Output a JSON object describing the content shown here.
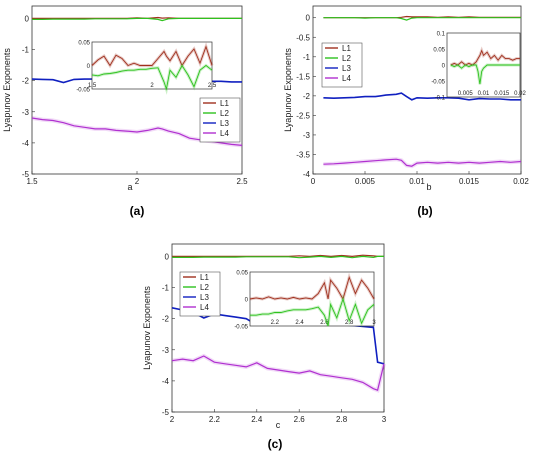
{
  "chart_data": [
    {
      "type": "line",
      "panel_caption": "(a)",
      "xlabel": "a",
      "ylabel": "Lyapunov Exponents",
      "xlim": [
        1.5,
        2.5
      ],
      "ylim": [
        -5,
        0.4
      ],
      "xticks": [
        "1.5",
        "2",
        "2.5"
      ],
      "yticks": [
        "0",
        "-1",
        "-2",
        "-3",
        "-4",
        "-5"
      ],
      "legend_position": "right",
      "x": [
        1.5,
        1.55,
        1.6,
        1.65,
        1.7,
        1.75,
        1.8,
        1.85,
        1.9,
        1.95,
        2.0,
        2.05,
        2.1,
        2.12,
        2.15,
        2.2,
        2.25,
        2.3,
        2.35,
        2.4,
        2.45,
        2.5
      ],
      "series": [
        {
          "name": "L1",
          "color": "#a0301e",
          "values": [
            0.0,
            0.0,
            0.0,
            0.0,
            0.0,
            0.0,
            0.0,
            0.0,
            0.0,
            0.0,
            0.02,
            0.0,
            0.03,
            0.01,
            0.02,
            0.0,
            0.0,
            0.0,
            0.0,
            0.0,
            0.0,
            0.0
          ]
        },
        {
          "name": "L2",
          "color": "#2ec21e",
          "values": [
            -0.03,
            -0.03,
            -0.02,
            -0.02,
            -0.02,
            -0.02,
            -0.01,
            -0.01,
            -0.01,
            -0.01,
            0.0,
            0.0,
            -0.03,
            -0.07,
            -0.01,
            0.0,
            0.0,
            0.0,
            0.0,
            0.0,
            0.0,
            0.0
          ]
        },
        {
          "name": "L3",
          "color": "#1020c0",
          "values": [
            -1.95,
            -1.96,
            -1.97,
            -2.06,
            -1.96,
            -1.95,
            -1.95,
            -1.95,
            -1.94,
            -1.95,
            -1.96,
            -1.97,
            -1.85,
            -2.0,
            -1.95,
            -2.02,
            -2.06,
            -2.04,
            -2.02,
            -2.02,
            -2.04,
            -2.04
          ]
        },
        {
          "name": "L4",
          "color": "#b030d0",
          "values": [
            -3.2,
            -3.25,
            -3.28,
            -3.35,
            -3.45,
            -3.5,
            -3.55,
            -3.55,
            -3.6,
            -3.62,
            -3.65,
            -3.6,
            -3.52,
            -3.55,
            -3.62,
            -3.7,
            -3.85,
            -3.9,
            -3.95,
            -4.0,
            -4.05,
            -4.08
          ]
        }
      ],
      "inset": {
        "xlim": [
          1.5,
          2.5
        ],
        "ylim": [
          -0.05,
          0.05
        ],
        "xticks": [
          "1.5",
          "2",
          "2.5"
        ],
        "yticks": [
          "0.05",
          "0",
          "-0.05"
        ],
        "x": [
          1.5,
          1.55,
          1.6,
          1.65,
          1.7,
          1.75,
          1.8,
          1.85,
          1.9,
          1.95,
          2.0,
          2.05,
          2.1,
          2.12,
          2.15,
          2.2,
          2.25,
          2.3,
          2.35,
          2.4,
          2.45,
          2.5
        ],
        "series": [
          {
            "name": "L1",
            "color": "#a0301e",
            "values": [
              0.0,
              0.012,
              0.02,
              0.0,
              0.022,
              0.015,
              0.0,
              0.005,
              0.0,
              0.0,
              0.0,
              0.015,
              0.03,
              0.02,
              0.01,
              0.03,
              0.0,
              0.02,
              0.035,
              0.005,
              0.04,
              0.0
            ]
          },
          {
            "name": "L2",
            "color": "#2ec21e",
            "values": [
              -0.02,
              -0.022,
              -0.018,
              -0.017,
              -0.015,
              -0.012,
              -0.01,
              -0.01,
              -0.008,
              -0.008,
              -0.006,
              -0.005,
              -0.035,
              -0.05,
              -0.01,
              -0.025,
              0.0,
              -0.02,
              -0.045,
              -0.01,
              0.0,
              -0.01
            ]
          }
        ]
      }
    },
    {
      "type": "line",
      "panel_caption": "(b)",
      "xlabel": "b",
      "ylabel": "Lyapunov Exponents",
      "xlim": [
        0,
        0.02
      ],
      "ylim": [
        -4,
        0.3
      ],
      "xticks": [
        "0",
        "0.005",
        "0.01",
        "0.015",
        "0.02"
      ],
      "yticks": [
        "0",
        "-0.5",
        "-1",
        "-1.5",
        "-2",
        "-2.5",
        "-3",
        "-3.5",
        "-4"
      ],
      "legend_position": "top-left",
      "x": [
        0.001,
        0.002,
        0.003,
        0.004,
        0.005,
        0.006,
        0.007,
        0.008,
        0.0085,
        0.009,
        0.0095,
        0.01,
        0.011,
        0.012,
        0.013,
        0.014,
        0.015,
        0.016,
        0.017,
        0.018,
        0.019,
        0.02
      ],
      "series": [
        {
          "name": "L1",
          "color": "#a0301e",
          "values": [
            0.0,
            0.0,
            0.0,
            0.0,
            0.0,
            0.0,
            0.0,
            0.0,
            0.01,
            0.03,
            0.02,
            0.02,
            0.02,
            0.01,
            0.02,
            0.01,
            0.02,
            0.01,
            0.01,
            0.01,
            0.01,
            0.01
          ]
        },
        {
          "name": "L2",
          "color": "#2ec21e",
          "values": [
            0.0,
            0.0,
            0.0,
            0.0,
            -0.01,
            0.0,
            0.0,
            0.0,
            -0.02,
            -0.06,
            -0.01,
            0.0,
            0.0,
            0.0,
            0.0,
            0.0,
            0.0,
            0.0,
            0.0,
            0.0,
            0.0,
            0.0
          ]
        },
        {
          "name": "L3",
          "color": "#1020c0",
          "values": [
            -2.05,
            -2.06,
            -2.05,
            -2.04,
            -2.02,
            -2.02,
            -1.98,
            -1.96,
            -1.93,
            -2.02,
            -2.1,
            -2.05,
            -2.06,
            -2.05,
            -2.05,
            -2.06,
            -2.1,
            -2.07,
            -2.08,
            -2.08,
            -2.1,
            -2.1
          ]
        },
        {
          "name": "L4",
          "color": "#b030d0",
          "values": [
            -3.75,
            -3.74,
            -3.72,
            -3.7,
            -3.68,
            -3.66,
            -3.64,
            -3.62,
            -3.65,
            -3.78,
            -3.8,
            -3.72,
            -3.7,
            -3.72,
            -3.7,
            -3.72,
            -3.7,
            -3.72,
            -3.7,
            -3.68,
            -3.7,
            -3.68
          ]
        }
      ],
      "inset": {
        "xlim": [
          0,
          0.02
        ],
        "ylim": [
          -0.1,
          0.1
        ],
        "xticks": [
          "0.005",
          "0.01",
          "0.015",
          "0.02"
        ],
        "yticks": [
          "0.1",
          "0.05",
          "0",
          "-0.05",
          "-0.1"
        ],
        "x": [
          0.001,
          0.002,
          0.003,
          0.004,
          0.005,
          0.006,
          0.007,
          0.008,
          0.0085,
          0.009,
          0.0095,
          0.01,
          0.011,
          0.012,
          0.013,
          0.014,
          0.015,
          0.016,
          0.017,
          0.018,
          0.019,
          0.02
        ],
        "series": [
          {
            "name": "L1",
            "color": "#a0301e",
            "values": [
              0.0,
              0.005,
              0.0,
              0.01,
              0.0,
              0.005,
              0.0,
              0.01,
              0.02,
              0.03,
              0.045,
              0.03,
              0.04,
              0.02,
              0.03,
              0.015,
              0.03,
              0.02,
              0.02,
              0.015,
              0.02,
              0.02
            ]
          },
          {
            "name": "L2",
            "color": "#2ec21e",
            "values": [
              0.0,
              -0.005,
              0.0,
              -0.01,
              0.0,
              -0.005,
              0.0,
              0.0,
              -0.02,
              -0.06,
              -0.02,
              -0.01,
              0.0,
              0.0,
              0.0,
              0.0,
              0.0,
              0.0,
              0.0,
              0.0,
              0.0,
              0.0
            ]
          }
        ]
      }
    },
    {
      "type": "line",
      "panel_caption": "(c)",
      "xlabel": "c",
      "ylabel": "Lyapunov Exponents",
      "xlim": [
        2,
        3
      ],
      "ylim": [
        -5,
        0.4
      ],
      "xticks": [
        "2",
        "2.2",
        "2.4",
        "2.6",
        "2.8",
        "3"
      ],
      "yticks": [
        "0",
        "-1",
        "-2",
        "-3",
        "-4",
        "-5"
      ],
      "legend_position": "top-left",
      "x": [
        2.0,
        2.05,
        2.1,
        2.15,
        2.2,
        2.25,
        2.3,
        2.35,
        2.4,
        2.45,
        2.5,
        2.55,
        2.6,
        2.65,
        2.7,
        2.75,
        2.8,
        2.85,
        2.9,
        2.95,
        2.97,
        3.0
      ],
      "series": [
        {
          "name": "L1",
          "color": "#a0301e",
          "values": [
            0.0,
            0.0,
            0.0,
            0.0,
            0.0,
            0.0,
            0.0,
            0.0,
            0.0,
            0.0,
            0.0,
            0.0,
            0.02,
            0.0,
            0.03,
            0.0,
            0.03,
            0.0,
            0.04,
            0.02,
            0.0,
            0.0
          ]
        },
        {
          "name": "L2",
          "color": "#2ec21e",
          "values": [
            -0.03,
            -0.03,
            -0.03,
            -0.02,
            -0.02,
            -0.02,
            -0.02,
            -0.01,
            -0.01,
            -0.01,
            -0.01,
            -0.01,
            -0.04,
            -0.02,
            0.0,
            -0.03,
            0.0,
            -0.04,
            0.0,
            -0.03,
            0.0,
            0.0
          ]
        },
        {
          "name": "L3",
          "color": "#1020c0",
          "values": [
            -1.65,
            -1.72,
            -1.8,
            -1.98,
            -1.85,
            -1.9,
            -1.95,
            -2.0,
            -2.2,
            -2.05,
            -2.08,
            -2.1,
            -2.05,
            -2.12,
            -2.15,
            -2.2,
            -2.2,
            -2.22,
            -2.25,
            -2.28,
            -3.4,
            -3.45
          ]
        },
        {
          "name": "L4",
          "color": "#b030d0",
          "values": [
            -3.35,
            -3.3,
            -3.35,
            -3.2,
            -3.4,
            -3.45,
            -3.5,
            -3.55,
            -3.42,
            -3.6,
            -3.65,
            -3.7,
            -3.75,
            -3.68,
            -3.8,
            -3.85,
            -3.9,
            -3.95,
            -4.05,
            -4.25,
            -4.3,
            -3.45
          ]
        }
      ],
      "inset": {
        "xlim": [
          2,
          3
        ],
        "ylim": [
          -0.05,
          0.05
        ],
        "xticks": [
          "2.2",
          "2.4",
          "2.6",
          "2.8",
          "3"
        ],
        "yticks": [
          "0.05",
          "0",
          "-0.05"
        ],
        "x": [
          2.0,
          2.05,
          2.1,
          2.15,
          2.2,
          2.25,
          2.3,
          2.35,
          2.4,
          2.45,
          2.5,
          2.55,
          2.6,
          2.63,
          2.65,
          2.7,
          2.75,
          2.8,
          2.85,
          2.9,
          2.95,
          3.0
        ],
        "series": [
          {
            "name": "L1",
            "color": "#a0301e",
            "values": [
              0.0,
              0.002,
              0.0,
              0.004,
              0.0,
              0.002,
              0.0,
              0.003,
              0.0,
              0.002,
              0.0,
              0.01,
              0.03,
              0.0,
              0.035,
              0.02,
              0.0,
              0.04,
              0.01,
              0.035,
              0.02,
              0.0
            ]
          },
          {
            "name": "L2",
            "color": "#2ec21e",
            "values": [
              -0.03,
              -0.03,
              -0.028,
              -0.028,
              -0.025,
              -0.025,
              -0.022,
              -0.02,
              -0.02,
              -0.02,
              -0.018,
              -0.015,
              -0.03,
              -0.05,
              -0.01,
              -0.035,
              0.0,
              -0.04,
              -0.01,
              -0.045,
              -0.02,
              -0.01
            ]
          }
        ]
      }
    }
  ]
}
